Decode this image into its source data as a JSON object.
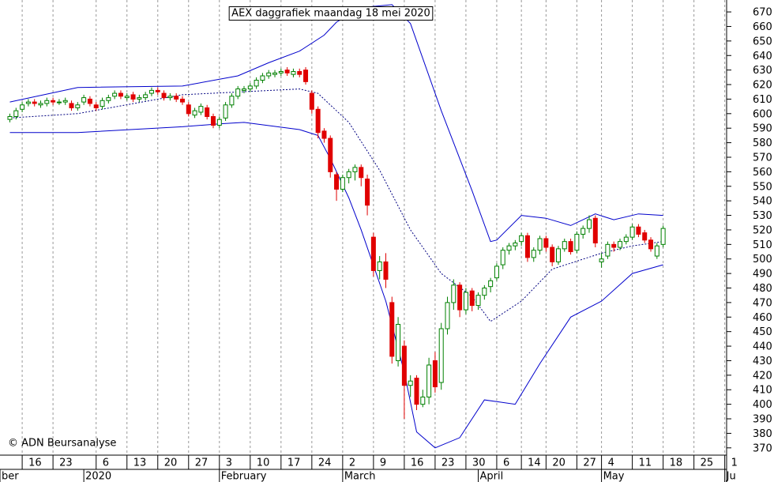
{
  "chart_data": {
    "type": "candlestick",
    "title": "AEX daggrafiek maandag 18 mei 2020",
    "copyright": "© ADN Beursanalyse",
    "x": [
      0,
      1,
      2,
      3,
      4,
      5,
      6,
      7,
      8,
      9,
      10,
      11,
      12,
      13,
      14,
      15,
      16,
      17,
      18,
      19,
      20,
      21,
      22,
      23,
      24,
      25,
      26,
      27,
      28,
      29,
      30,
      31,
      32,
      33,
      34,
      35,
      36,
      37,
      38,
      39,
      40,
      41,
      42,
      43,
      44,
      45,
      46,
      47,
      48,
      49,
      50,
      51,
      52,
      53,
      54,
      55,
      56,
      57,
      58,
      59,
      60,
      61,
      62,
      63,
      64,
      65,
      66,
      67,
      68,
      69,
      70,
      71,
      72,
      73,
      74,
      75,
      76,
      77,
      78,
      79,
      80,
      81,
      82,
      83,
      84,
      85,
      86,
      87,
      88,
      89,
      90,
      91,
      92,
      93,
      94,
      95,
      96,
      97,
      98,
      99,
      100,
      101,
      102,
      103,
      104,
      105,
      106
    ],
    "open": [
      596,
      598,
      603,
      607,
      608,
      606,
      607,
      609,
      608,
      608,
      607,
      604,
      608,
      610,
      606,
      605,
      609,
      612,
      614,
      611,
      613,
      610,
      611,
      614,
      616,
      614,
      611,
      612,
      610,
      606,
      599,
      601,
      604,
      598,
      592,
      597,
      606,
      612,
      616,
      617,
      619,
      623,
      626,
      627,
      628,
      630,
      627,
      629,
      630,
      614,
      603,
      588,
      583,
      558,
      548,
      556,
      560,
      563,
      555,
      515,
      492,
      498,
      470,
      430,
      440,
      413,
      418,
      400,
      405,
      430,
      415,
      452,
      470,
      482,
      465,
      478,
      468,
      475,
      481,
      487,
      496,
      506,
      509,
      512,
      516,
      501,
      506,
      514,
      508,
      498,
      507,
      512,
      506,
      517,
      521,
      528,
      498,
      502,
      510,
      508,
      512,
      515,
      522,
      518,
      513,
      502,
      510
    ],
    "high": [
      600,
      604,
      608,
      610,
      610,
      609,
      611,
      611,
      610,
      611,
      609,
      608,
      613,
      612,
      608,
      611,
      613,
      616,
      616,
      614,
      615,
      613,
      615,
      618,
      618,
      616,
      614,
      614,
      612,
      608,
      604,
      607,
      606,
      600,
      598,
      608,
      614,
      619,
      619,
      621,
      625,
      628,
      630,
      630,
      631,
      632,
      631,
      631,
      632,
      616,
      605,
      590,
      585,
      560,
      558,
      562,
      565,
      565,
      558,
      518,
      502,
      504,
      474,
      460,
      444,
      420,
      420,
      410,
      432,
      436,
      456,
      474,
      486,
      484,
      480,
      480,
      477,
      482,
      487,
      497,
      508,
      511,
      513,
      518,
      518,
      508,
      516,
      516,
      510,
      509,
      514,
      514,
      519,
      523,
      530,
      530,
      504,
      512,
      512,
      514,
      517,
      524,
      524,
      520,
      515,
      511,
      523
    ],
    "low": [
      594,
      596,
      601,
      605,
      605,
      604,
      605,
      606,
      606,
      606,
      602,
      602,
      606,
      605,
      602,
      603,
      607,
      610,
      610,
      609,
      608,
      608,
      609,
      612,
      613,
      609,
      609,
      608,
      606,
      598,
      597,
      599,
      596,
      590,
      590,
      595,
      604,
      610,
      614,
      615,
      617,
      621,
      624,
      625,
      626,
      626,
      625,
      625,
      620,
      600,
      583,
      580,
      556,
      540,
      546,
      552,
      554,
      550,
      530,
      488,
      486,
      480,
      428,
      426,
      390,
      405,
      396,
      398,
      400,
      408,
      410,
      448,
      465,
      460,
      462,
      464,
      465,
      472,
      477,
      485,
      493,
      503,
      506,
      509,
      498,
      498,
      503,
      505,
      495,
      496,
      505,
      503,
      504,
      514,
      518,
      508,
      494,
      500,
      505,
      506,
      510,
      513,
      515,
      511,
      505,
      500,
      508
    ],
    "close": [
      598,
      602,
      606,
      608,
      607,
      607,
      609,
      608,
      608,
      609,
      604,
      606,
      611,
      607,
      604,
      609,
      611,
      614,
      612,
      612,
      610,
      611,
      613,
      616,
      615,
      611,
      612,
      610,
      608,
      600,
      602,
      605,
      598,
      592,
      596,
      606,
      612,
      617,
      617,
      619,
      623,
      626,
      628,
      628,
      629,
      628,
      629,
      627,
      622,
      603,
      587,
      583,
      560,
      548,
      556,
      560,
      563,
      556,
      537,
      492,
      498,
      486,
      433,
      455,
      413,
      416,
      400,
      405,
      427,
      412,
      452,
      470,
      482,
      465,
      477,
      468,
      475,
      480,
      485,
      495,
      506,
      509,
      511,
      516,
      501,
      506,
      514,
      508,
      498,
      507,
      512,
      505,
      517,
      521,
      527,
      511,
      500,
      510,
      508,
      512,
      515,
      522,
      517,
      513,
      507,
      509,
      521
    ],
    "up_color": "#008000",
    "down_color": "#e00000",
    "bands": [
      {
        "x": [
          0,
          11,
          28,
          37,
          42,
          47,
          51,
          53,
          57,
          62,
          65,
          70,
          75,
          78,
          79,
          83,
          87,
          91,
          95,
          98,
          102,
          106
        ],
        "values": [
          608,
          618,
          619,
          626,
          635,
          643,
          654,
          663,
          673,
          675,
          662,
          602,
          547,
          512,
          513,
          530,
          528,
          523,
          531,
          527,
          531,
          530
        ],
        "color": "#0000cc",
        "dashed": false
      },
      {
        "x": [
          0,
          11,
          28,
          47,
          50,
          55,
          60,
          65,
          70,
          75,
          78,
          83,
          88,
          96,
          101,
          106
        ],
        "values": [
          597,
          600,
          613,
          617,
          614,
          594,
          561,
          520,
          490,
          474,
          457,
          471,
          493,
          504,
          509,
          512
        ],
        "color": "#000080",
        "dashed": true
      },
      {
        "x": [
          0,
          11,
          28,
          34,
          38,
          47,
          50,
          52,
          55,
          57,
          61,
          64,
          66,
          69,
          73,
          77,
          82,
          86,
          91,
          96,
          101,
          106
        ],
        "values": [
          587,
          587,
          591,
          593,
          594,
          589,
          585,
          569,
          542,
          520,
          471,
          422,
          381,
          370,
          377,
          403,
          400,
          428,
          460,
          471,
          490,
          496
        ],
        "color": "#0000cc",
        "dashed": false
      }
    ],
    "xlim": [
      -1.6,
      116.3
    ],
    "ylim": [
      365,
      678.2
    ],
    "yticks": [
      370,
      380,
      390,
      400,
      410,
      420,
      430,
      440,
      450,
      460,
      470,
      480,
      490,
      500,
      510,
      520,
      530,
      540,
      550,
      560,
      570,
      580,
      590,
      600,
      610,
      620,
      630,
      640,
      650,
      660,
      670
    ],
    "xticks": [
      {
        "value": 2,
        "label": "16"
      },
      {
        "value": 7,
        "label": "23"
      },
      {
        "value": 14,
        "label": "6"
      },
      {
        "value": 19,
        "label": "13"
      },
      {
        "value": 24,
        "label": "20"
      },
      {
        "value": 29,
        "label": "27"
      },
      {
        "value": 34,
        "label": "3"
      },
      {
        "value": 39,
        "label": "10"
      },
      {
        "value": 44,
        "label": "17"
      },
      {
        "value": 49,
        "label": "24"
      },
      {
        "value": 54,
        "label": "2"
      },
      {
        "value": 59,
        "label": "9"
      },
      {
        "value": 64,
        "label": "16"
      },
      {
        "value": 69,
        "label": "23"
      },
      {
        "value": 74,
        "label": "30"
      },
      {
        "value": 79,
        "label": "6"
      },
      {
        "value": 83,
        "label": "14"
      },
      {
        "value": 87,
        "label": "20"
      },
      {
        "value": 92,
        "label": "27"
      },
      {
        "value": 96,
        "label": "4"
      },
      {
        "value": 101,
        "label": "11"
      },
      {
        "value": 106,
        "label": "18"
      },
      {
        "value": 111,
        "label": "25"
      },
      {
        "value": 116,
        "label": "1"
      }
    ],
    "month_ticks": [
      {
        "value": -1.6,
        "label": "ber"
      },
      {
        "value": 12,
        "label": "2020"
      },
      {
        "value": 34,
        "label": "February"
      },
      {
        "value": 54,
        "label": "March"
      },
      {
        "value": 76,
        "label": "April"
      },
      {
        "value": 96,
        "label": "May"
      },
      {
        "value": 116,
        "label": "Ju"
      }
    ],
    "grid": true
  }
}
